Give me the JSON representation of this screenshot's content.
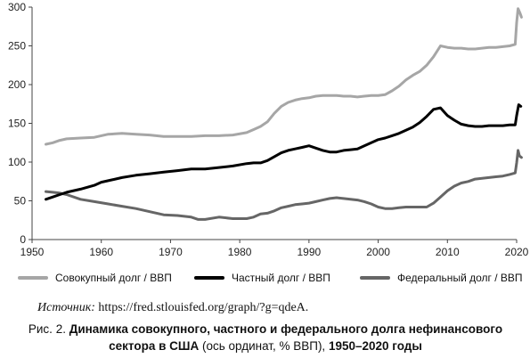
{
  "chart_data": {
    "type": "line",
    "xlim": [
      1950,
      2020
    ],
    "ylim": [
      0,
      300
    ],
    "x_ticks": [
      "1950",
      "1960",
      "1970",
      "1980",
      "1990",
      "2000",
      "2010",
      "2020"
    ],
    "y_ticks": [
      "0",
      "50",
      "100",
      "150",
      "200",
      "250",
      "300"
    ],
    "grid": false,
    "legend_position": "bottom",
    "series": [
      {
        "name": "Совокупный долг / ВВП",
        "color": "#a6a6a6",
        "points": [
          [
            1952,
            123
          ],
          [
            1953,
            125
          ],
          [
            1954,
            128
          ],
          [
            1955,
            130
          ],
          [
            1957,
            131
          ],
          [
            1959,
            132
          ],
          [
            1960,
            134
          ],
          [
            1961,
            136
          ],
          [
            1963,
            137
          ],
          [
            1965,
            136
          ],
          [
            1967,
            135
          ],
          [
            1969,
            133
          ],
          [
            1971,
            133
          ],
          [
            1973,
            133
          ],
          [
            1975,
            134
          ],
          [
            1977,
            134
          ],
          [
            1979,
            135
          ],
          [
            1981,
            138
          ],
          [
            1982,
            142
          ],
          [
            1983,
            146
          ],
          [
            1984,
            152
          ],
          [
            1985,
            163
          ],
          [
            1986,
            172
          ],
          [
            1987,
            177
          ],
          [
            1988,
            180
          ],
          [
            1989,
            182
          ],
          [
            1990,
            183
          ],
          [
            1991,
            185
          ],
          [
            1992,
            186
          ],
          [
            1993,
            186
          ],
          [
            1994,
            186
          ],
          [
            1995,
            185
          ],
          [
            1996,
            185
          ],
          [
            1997,
            184
          ],
          [
            1998,
            185
          ],
          [
            1999,
            186
          ],
          [
            2000,
            186
          ],
          [
            2001,
            187
          ],
          [
            2002,
            192
          ],
          [
            2003,
            198
          ],
          [
            2004,
            206
          ],
          [
            2005,
            212
          ],
          [
            2006,
            217
          ],
          [
            2007,
            225
          ],
          [
            2008,
            236
          ],
          [
            2009,
            250
          ],
          [
            2010,
            248
          ],
          [
            2011,
            247
          ],
          [
            2012,
            247
          ],
          [
            2013,
            246
          ],
          [
            2014,
            246
          ],
          [
            2015,
            247
          ],
          [
            2016,
            248
          ],
          [
            2017,
            248
          ],
          [
            2018,
            249
          ],
          [
            2019,
            250
          ],
          [
            2019.8,
            252
          ],
          [
            2020,
            280
          ],
          [
            2020.2,
            298
          ],
          [
            2020.5,
            292
          ],
          [
            2020.7,
            287
          ]
        ]
      },
      {
        "name": "Частный долг / ВВП",
        "color": "#000000",
        "points": [
          [
            1952,
            52
          ],
          [
            1953,
            55
          ],
          [
            1954,
            58
          ],
          [
            1955,
            61
          ],
          [
            1957,
            65
          ],
          [
            1959,
            70
          ],
          [
            1960,
            74
          ],
          [
            1961,
            76
          ],
          [
            1963,
            80
          ],
          [
            1965,
            83
          ],
          [
            1967,
            85
          ],
          [
            1969,
            87
          ],
          [
            1971,
            89
          ],
          [
            1973,
            91
          ],
          [
            1975,
            91
          ],
          [
            1977,
            93
          ],
          [
            1979,
            95
          ],
          [
            1981,
            98
          ],
          [
            1982,
            99
          ],
          [
            1983,
            99
          ],
          [
            1984,
            102
          ],
          [
            1985,
            107
          ],
          [
            1986,
            112
          ],
          [
            1987,
            115
          ],
          [
            1988,
            117
          ],
          [
            1989,
            119
          ],
          [
            1990,
            121
          ],
          [
            1991,
            118
          ],
          [
            1992,
            115
          ],
          [
            1993,
            113
          ],
          [
            1994,
            113
          ],
          [
            1995,
            115
          ],
          [
            1996,
            116
          ],
          [
            1997,
            117
          ],
          [
            1998,
            121
          ],
          [
            1999,
            125
          ],
          [
            2000,
            129
          ],
          [
            2001,
            131
          ],
          [
            2002,
            134
          ],
          [
            2003,
            137
          ],
          [
            2004,
            141
          ],
          [
            2005,
            145
          ],
          [
            2006,
            151
          ],
          [
            2007,
            159
          ],
          [
            2008,
            168
          ],
          [
            2009,
            170
          ],
          [
            2010,
            160
          ],
          [
            2011,
            154
          ],
          [
            2012,
            149
          ],
          [
            2013,
            147
          ],
          [
            2014,
            146
          ],
          [
            2015,
            146
          ],
          [
            2016,
            147
          ],
          [
            2017,
            147
          ],
          [
            2018,
            147
          ],
          [
            2019,
            148
          ],
          [
            2019.8,
            148
          ],
          [
            2020,
            160
          ],
          [
            2020.3,
            174
          ],
          [
            2020.6,
            172
          ]
        ]
      },
      {
        "name": "Федеральный долг / ВВП",
        "color": "#666666",
        "points": [
          [
            1952,
            62
          ],
          [
            1953,
            61
          ],
          [
            1954,
            60
          ],
          [
            1955,
            58
          ],
          [
            1957,
            52
          ],
          [
            1959,
            49
          ],
          [
            1961,
            46
          ],
          [
            1963,
            43
          ],
          [
            1965,
            40
          ],
          [
            1967,
            36
          ],
          [
            1969,
            32
          ],
          [
            1971,
            31
          ],
          [
            1973,
            29
          ],
          [
            1974,
            26
          ],
          [
            1975,
            26
          ],
          [
            1977,
            29
          ],
          [
            1979,
            27
          ],
          [
            1981,
            27
          ],
          [
            1982,
            29
          ],
          [
            1983,
            33
          ],
          [
            1984,
            34
          ],
          [
            1985,
            37
          ],
          [
            1986,
            41
          ],
          [
            1987,
            43
          ],
          [
            1988,
            45
          ],
          [
            1989,
            46
          ],
          [
            1990,
            47
          ],
          [
            1991,
            49
          ],
          [
            1992,
            51
          ],
          [
            1993,
            53
          ],
          [
            1994,
            54
          ],
          [
            1995,
            53
          ],
          [
            1996,
            52
          ],
          [
            1997,
            51
          ],
          [
            1998,
            49
          ],
          [
            1999,
            46
          ],
          [
            2000,
            42
          ],
          [
            2001,
            40
          ],
          [
            2002,
            40
          ],
          [
            2003,
            41
          ],
          [
            2004,
            42
          ],
          [
            2005,
            42
          ],
          [
            2006,
            42
          ],
          [
            2007,
            42
          ],
          [
            2008,
            47
          ],
          [
            2009,
            55
          ],
          [
            2010,
            63
          ],
          [
            2011,
            69
          ],
          [
            2012,
            73
          ],
          [
            2013,
            75
          ],
          [
            2014,
            78
          ],
          [
            2015,
            79
          ],
          [
            2016,
            80
          ],
          [
            2017,
            81
          ],
          [
            2018,
            82
          ],
          [
            2019,
            84
          ],
          [
            2019.8,
            86
          ],
          [
            2020,
            99
          ],
          [
            2020.2,
            115
          ],
          [
            2020.4,
            108
          ],
          [
            2020.7,
            106
          ]
        ]
      }
    ]
  },
  "source": {
    "label": "Источник:",
    "url": " https://fred.stlouisfed.org/graph/?g=qdeA."
  },
  "caption": {
    "prefix": "Рис. 2. ",
    "title_bold": "Динамика совокупного, частного и федерального долга нефинансового сектора в США",
    "axis_note": " (ось ординат, % ВВП), ",
    "years_bold": "1950–2020 годы"
  }
}
